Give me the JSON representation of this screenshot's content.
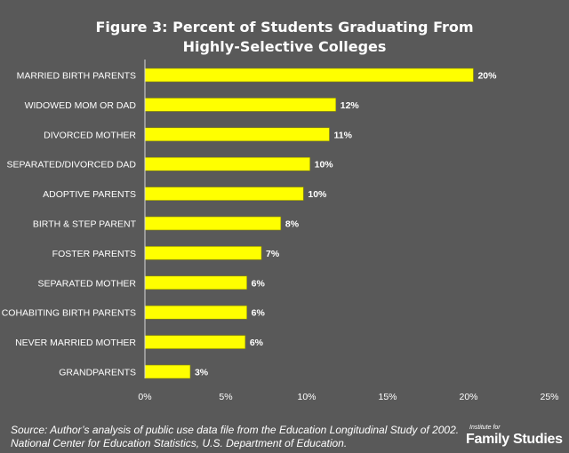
{
  "chart_data": {
    "type": "bar",
    "orientation": "horizontal",
    "title_lines": [
      "Figure 3: Percent of Students Graduating From",
      "Highly-Selective Colleges"
    ],
    "categories": [
      "MARRIED BIRTH PARENTS",
      "WIDOWED MOM OR DAD",
      "DIVORCED MOTHER",
      "SEPARATED/DIVORCED DAD",
      "ADOPTIVE PARENTS",
      "BIRTH & STEP PARENT",
      "FOSTER PARENTS",
      "SEPARATED MOTHER",
      "COHABITING BIRTH PARENTS",
      "NEVER MARRIED MOTHER",
      "GRANDPARENTS"
    ],
    "values": [
      20.3,
      11.8,
      11.4,
      10.2,
      9.8,
      8.4,
      7.2,
      6.3,
      6.3,
      6.2,
      2.8
    ],
    "data_labels": [
      "20%",
      "12%",
      "11%",
      "10%",
      "10%",
      "8%",
      "7%",
      "6%",
      "6%",
      "6%",
      "3%"
    ],
    "xlim": [
      0,
      25
    ],
    "x_ticks": [
      0,
      5,
      10,
      15,
      20,
      25
    ],
    "x_tick_labels": [
      "0%",
      "5%",
      "10%",
      "15%",
      "20%",
      "25%"
    ],
    "grid": false,
    "legend": "none",
    "colors": {
      "bar": "#ffff00",
      "bar_stroke": "#8a8a00",
      "background": "#595959",
      "text": "#ffffff",
      "axis": "#d9d9d9"
    }
  },
  "footer": {
    "source_line1": "Source: Author’s analysis of public use data file from the Education Longitudinal Study of 2002.",
    "source_line2": "National Center for Education Statistics, U.S. Department of Education."
  },
  "brand": {
    "small": "Institute for",
    "main": "Family Studies"
  }
}
